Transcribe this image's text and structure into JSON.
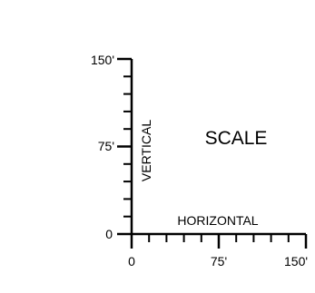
{
  "title": "SCALE",
  "vertical_axis": {
    "label": "VERTICAL",
    "tick_labels": [
      "150'",
      "75'",
      "0"
    ],
    "max_value": 150,
    "major_step": 75,
    "minor_step": 15
  },
  "horizontal_axis": {
    "label": "HORIZONTAL",
    "tick_labels": [
      "0",
      "75'",
      "150'"
    ],
    "max_value": 150,
    "major_step": 75,
    "minor_step": 15
  },
  "colors": {
    "line": "#000000",
    "background": "#ffffff"
  }
}
